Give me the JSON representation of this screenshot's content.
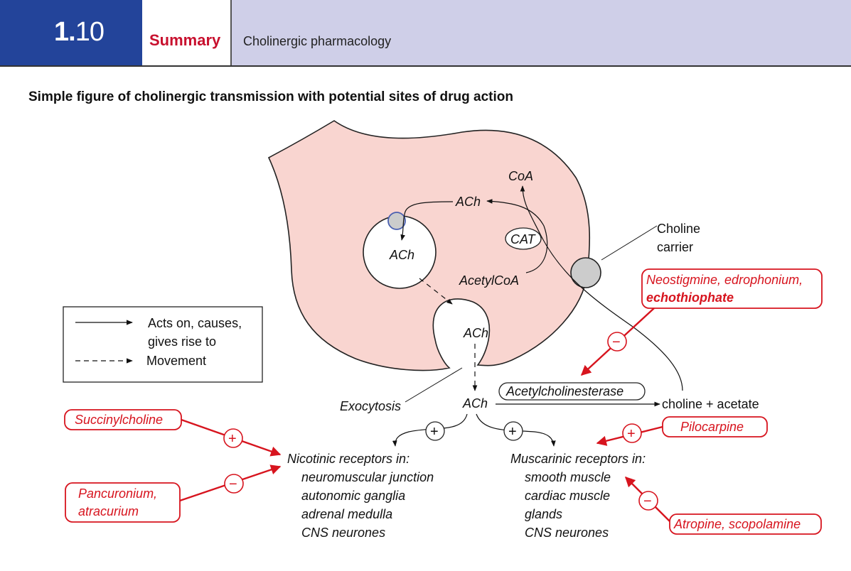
{
  "header": {
    "section_major": "1.",
    "section_minor": "10",
    "summary_label": "Summary",
    "topic": "Cholinergic pharmacology"
  },
  "figure_title": "Simple figure of cholinergic transmission with potential sites of drug action",
  "legend": {
    "solid_line_1": "Acts on, causes,",
    "solid_line_2": "gives rise to",
    "dashed": "Movement"
  },
  "neuron": {
    "coa": "CoA",
    "ach_synth": "ACh",
    "cat": "CAT",
    "acetylcoa": "AcetylCoA",
    "ach_vesicle": "ACh",
    "ach_release": "ACh",
    "choline_carrier_1": "Choline",
    "choline_carrier_2": "carrier"
  },
  "cleft": {
    "exocytosis": "Exocytosis",
    "ach": "ACh",
    "enzyme": "Acetylcholinesterase",
    "products": "choline + acetate"
  },
  "nicotinic": {
    "heading": "Nicotinic receptors in:",
    "items": [
      "neuromuscular junction",
      "autonomic ganglia",
      "adrenal medulla",
      "CNS neurones"
    ]
  },
  "muscarinic": {
    "heading": "Muscarinic receptors in:",
    "items": [
      "smooth muscle",
      "cardiac muscle",
      "glands",
      "CNS neurones"
    ]
  },
  "drugs": {
    "succinylcholine": "Succinylcholine",
    "pancuronium_1": "Pancuronium,",
    "pancuronium_2": "atracurium",
    "neostigmine_1": "Neostigmine, edrophonium,",
    "neostigmine_2": "echothiophate",
    "pilocarpine": "Pilocarpine",
    "atropine": "Atropine, scopolamine"
  },
  "signs": {
    "plus": "+",
    "minus": "−"
  },
  "colors": {
    "header_blue": "#23449a",
    "header_lavender": "#cfcfe8",
    "drug_red": "#d7141e",
    "cell_fill": "#f9d5d0"
  }
}
